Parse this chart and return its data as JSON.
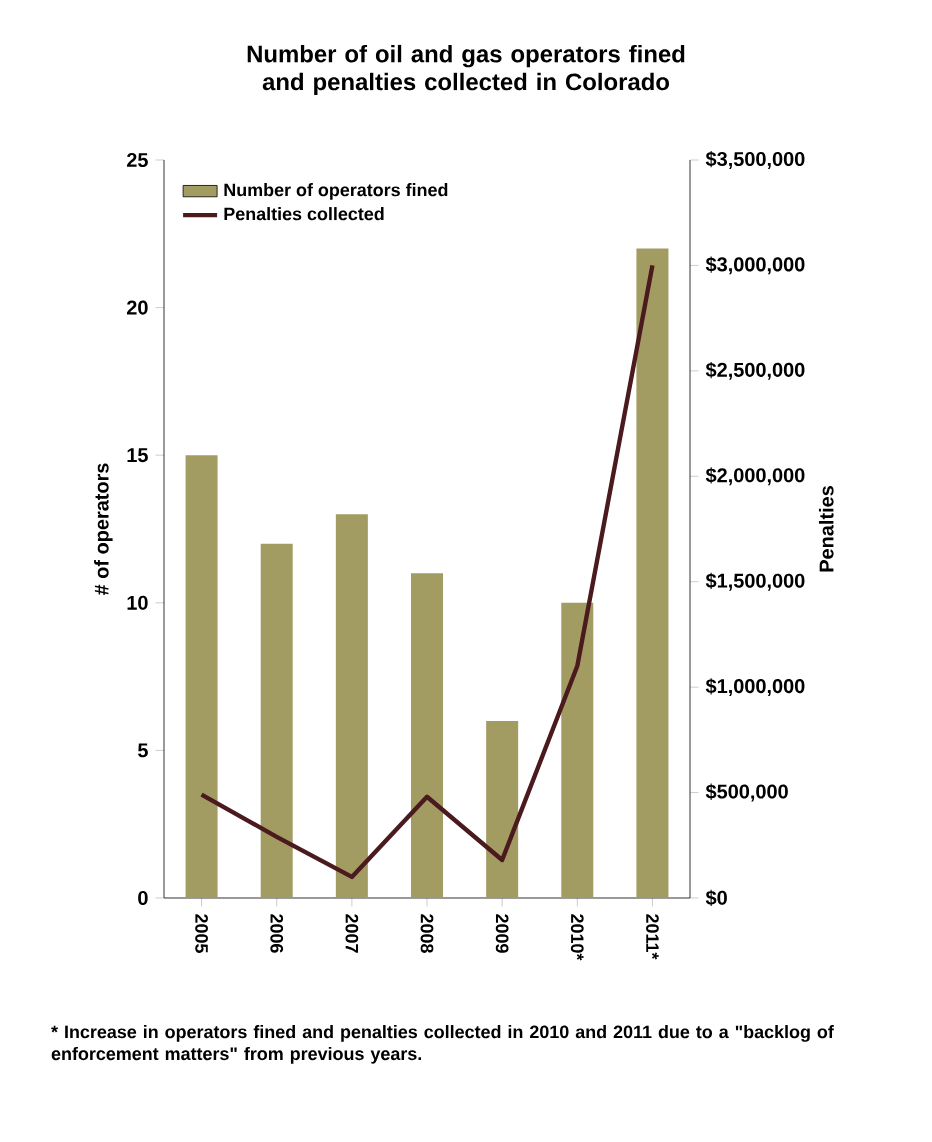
{
  "chart_data": {
    "type": "bar",
    "title": "Number of oil and gas operators fined and penalties collected in Colorado",
    "ylabel": "# of operators",
    "y2label": "Penalties",
    "categories": [
      "2005",
      "2006",
      "2007",
      "2008",
      "2009",
      "2010*",
      "2011*"
    ],
    "series": [
      {
        "name": "Number of operators fined",
        "color": "#a39c62",
        "values": [
          15,
          12,
          13,
          11,
          6,
          10,
          22
        ]
      },
      {
        "name": "Penalties collected",
        "type": "line",
        "axis": "y2",
        "color": "#4a1a1e",
        "values": [
          490000,
          290000,
          100000,
          480000,
          180000,
          1100000,
          3000000
        ]
      }
    ],
    "ylim": [
      0,
      25
    ],
    "yticks": [
      0,
      5,
      10,
      15,
      20,
      25
    ],
    "y2lim": [
      0,
      3500000
    ],
    "y2ticks": [
      {
        "value": 0,
        "label": "$0"
      },
      {
        "value": 500000,
        "label": "$500,000"
      },
      {
        "value": 1000000,
        "label": "$1,000,000"
      },
      {
        "value": 1500000,
        "label": "$1,500,000"
      },
      {
        "value": 2000000,
        "label": "$2,000,000"
      },
      {
        "value": 2500000,
        "label": "$2,500,000"
      },
      {
        "value": 3000000,
        "label": "$3,000,000"
      },
      {
        "value": 3500000,
        "label": "$3,500,000"
      }
    ],
    "legend": "top left",
    "grid": false,
    "annotations": [
      "* Increase in operators fined and penalties collected in 2010 and 2011 due to a \"backlog of enforcement matters\" from previous years."
    ]
  }
}
